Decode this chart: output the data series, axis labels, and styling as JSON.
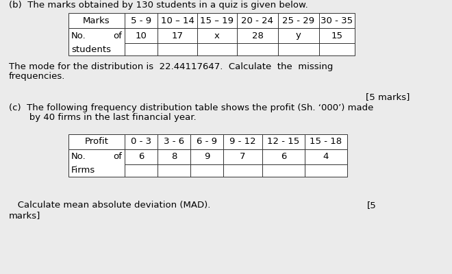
{
  "bg_color": "#ebebeb",
  "text_color": "#000000",
  "part_b_label": "(b)  The marks obtained by 130 students in a quiz is given below.",
  "table1_headers": [
    "Marks",
    "5 - 9",
    "10 – 14",
    "15 – 19",
    "20 - 24",
    "25 - 29",
    "30 - 35"
  ],
  "table1_row1_label_a": "No.",
  "table1_row1_label_b": "of",
  "table1_row2_label": "students",
  "table1_values": [
    "10",
    "17",
    "x",
    "28",
    "y",
    "15"
  ],
  "mode_line1": "The mode for the distribution is  22.44117647.  Calculate  the  missing",
  "mode_line2": "frequencies.",
  "marks5_text": "[5 marks]",
  "part_c_line1": "(c)  The following frequency distribution table shows the profit (Sh. ‘000’) made",
  "part_c_line2": "       by 40 firms in the last financial year.",
  "table2_headers": [
    "Profit",
    "0 - 3",
    "3 - 6",
    "6 - 9",
    "9 - 12",
    "12 - 15",
    "15 - 18"
  ],
  "table2_row1_label_a": "No.",
  "table2_row1_label_b": "of",
  "table2_row2_label": "Firms",
  "table2_values": [
    "6",
    "8",
    "9",
    "7",
    "6",
    "4"
  ],
  "mad_line1": "   Calculate mean absolute deviation (MAD).",
  "marks5b_text": "[5",
  "marks_line2": "marks]",
  "fs_body": 9.5,
  "fs_table": 9.5
}
